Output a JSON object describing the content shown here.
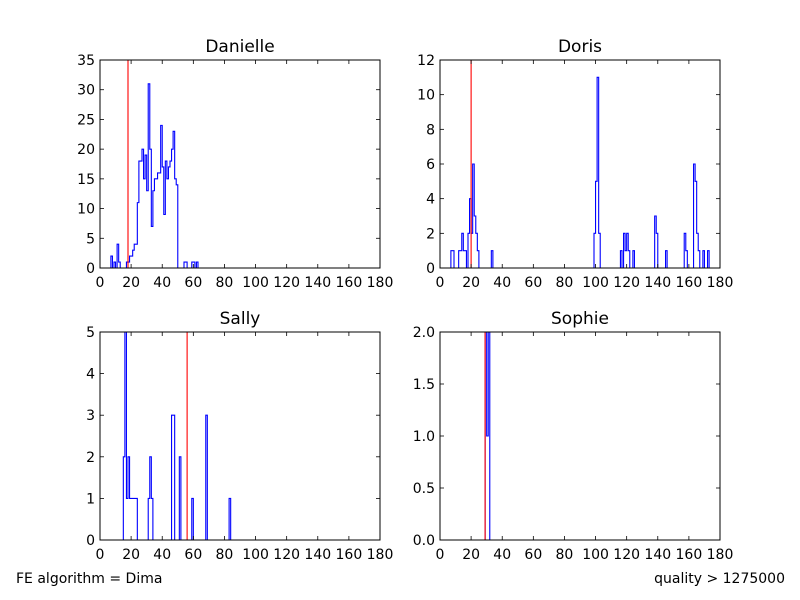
{
  "footer": {
    "left": "FE algorithm = Dima",
    "right": "quality > 1275000"
  },
  "chart_data": [
    {
      "type": "histogram",
      "title": "Danielle",
      "xlim": [
        0,
        180
      ],
      "ylim": [
        0,
        35
      ],
      "xticks": [
        "0",
        "20",
        "40",
        "60",
        "80",
        "100",
        "120",
        "140",
        "160",
        "180"
      ],
      "yticks": [
        "0",
        "5",
        "10",
        "15",
        "20",
        "25",
        "30",
        "35"
      ],
      "bin_width": 1,
      "series_color": "#0000ff",
      "marker_color": "#ff0000",
      "marker_x": 18,
      "bins": [
        [
          7,
          2
        ],
        [
          8,
          0
        ],
        [
          9,
          1
        ],
        [
          10,
          0
        ],
        [
          11,
          4
        ],
        [
          12,
          1
        ],
        [
          13,
          0
        ],
        [
          17,
          1
        ],
        [
          18,
          1
        ],
        [
          19,
          2
        ],
        [
          20,
          2
        ],
        [
          21,
          3
        ],
        [
          22,
          4
        ],
        [
          23,
          4
        ],
        [
          24,
          11
        ],
        [
          25,
          18
        ],
        [
          26,
          18
        ],
        [
          27,
          20
        ],
        [
          28,
          15
        ],
        [
          29,
          19
        ],
        [
          30,
          13
        ],
        [
          31,
          31
        ],
        [
          32,
          20
        ],
        [
          33,
          7
        ],
        [
          34,
          13
        ],
        [
          35,
          15
        ],
        [
          36,
          15
        ],
        [
          37,
          16
        ],
        [
          38,
          16
        ],
        [
          39,
          24
        ],
        [
          40,
          17
        ],
        [
          41,
          9
        ],
        [
          42,
          18
        ],
        [
          43,
          15
        ],
        [
          44,
          17
        ],
        [
          45,
          18
        ],
        [
          46,
          20
        ],
        [
          47,
          23
        ],
        [
          48,
          15
        ],
        [
          49,
          14
        ],
        [
          50,
          0
        ],
        [
          54,
          1
        ],
        [
          55,
          1
        ],
        [
          56,
          0
        ],
        [
          59,
          1
        ],
        [
          60,
          1
        ],
        [
          61,
          0
        ],
        [
          62,
          1
        ],
        [
          63,
          0
        ]
      ]
    },
    {
      "type": "histogram",
      "title": "Doris",
      "xlim": [
        0,
        180
      ],
      "ylim": [
        0,
        12
      ],
      "xticks": [
        "0",
        "20",
        "40",
        "60",
        "80",
        "100",
        "120",
        "140",
        "160",
        "180"
      ],
      "yticks": [
        "0",
        "2",
        "4",
        "6",
        "8",
        "10",
        "12"
      ],
      "bin_width": 1,
      "series_color": "#0000ff",
      "marker_color": "#ff0000",
      "marker_x": 20,
      "bins": [
        [
          7,
          1
        ],
        [
          8,
          1
        ],
        [
          11,
          0
        ],
        [
          12,
          1
        ],
        [
          13,
          1
        ],
        [
          14,
          2
        ],
        [
          15,
          1
        ],
        [
          16,
          1
        ],
        [
          17,
          0
        ],
        [
          18,
          2
        ],
        [
          19,
          4
        ],
        [
          20,
          2
        ],
        [
          21,
          6
        ],
        [
          22,
          3
        ],
        [
          23,
          2
        ],
        [
          24,
          1
        ],
        [
          27,
          0
        ],
        [
          33,
          1
        ],
        [
          34,
          0
        ],
        [
          99,
          2
        ],
        [
          100,
          5
        ],
        [
          101,
          11
        ],
        [
          102,
          2
        ],
        [
          103,
          0
        ],
        [
          116,
          1
        ],
        [
          117,
          0
        ],
        [
          118,
          2
        ],
        [
          119,
          1
        ],
        [
          120,
          2
        ],
        [
          121,
          1
        ],
        [
          122,
          0
        ],
        [
          124,
          1
        ],
        [
          125,
          0
        ],
        [
          138,
          3
        ],
        [
          139,
          2
        ],
        [
          140,
          0
        ],
        [
          145,
          1
        ],
        [
          146,
          0
        ],
        [
          157,
          2
        ],
        [
          158,
          1
        ],
        [
          159,
          0
        ],
        [
          163,
          6
        ],
        [
          164,
          5
        ],
        [
          165,
          2
        ],
        [
          166,
          1
        ],
        [
          167,
          0
        ],
        [
          169,
          1
        ],
        [
          170,
          0
        ],
        [
          172,
          1
        ],
        [
          173,
          0
        ]
      ]
    },
    {
      "type": "histogram",
      "title": "Sally",
      "xlim": [
        0,
        180
      ],
      "ylim": [
        0,
        5
      ],
      "xticks": [
        "0",
        "20",
        "40",
        "60",
        "80",
        "100",
        "120",
        "140",
        "160",
        "180"
      ],
      "yticks": [
        "0",
        "1",
        "2",
        "3",
        "4",
        "5"
      ],
      "bin_width": 1,
      "series_color": "#0000ff",
      "marker_color": "#ff0000",
      "marker_x": 56,
      "bins": [
        [
          15,
          2
        ],
        [
          16,
          5
        ],
        [
          17,
          1
        ],
        [
          18,
          2
        ],
        [
          19,
          1
        ],
        [
          20,
          1
        ],
        [
          21,
          1
        ],
        [
          22,
          1
        ],
        [
          23,
          1
        ],
        [
          24,
          0
        ],
        [
          31,
          1
        ],
        [
          32,
          2
        ],
        [
          33,
          1
        ],
        [
          34,
          0
        ],
        [
          46,
          3
        ],
        [
          47,
          3
        ],
        [
          48,
          0
        ],
        [
          51,
          2
        ],
        [
          52,
          0
        ],
        [
          59,
          1
        ],
        [
          60,
          0
        ],
        [
          68,
          3
        ],
        [
          69,
          0
        ],
        [
          83,
          1
        ],
        [
          84,
          0
        ]
      ]
    },
    {
      "type": "histogram",
      "title": "Sophie",
      "xlim": [
        0,
        180
      ],
      "ylim": [
        0,
        2.0
      ],
      "xticks": [
        "0",
        "20",
        "40",
        "60",
        "80",
        "100",
        "120",
        "140",
        "160",
        "180"
      ],
      "yticks": [
        "0.0",
        "0.5",
        "1.0",
        "1.5",
        "2.0"
      ],
      "bin_width": 1,
      "series_color": "#0000ff",
      "marker_color": "#ff0000",
      "marker_x": 29,
      "bins": [
        [
          29,
          2
        ],
        [
          30,
          1
        ],
        [
          31,
          2
        ]
      ]
    }
  ]
}
